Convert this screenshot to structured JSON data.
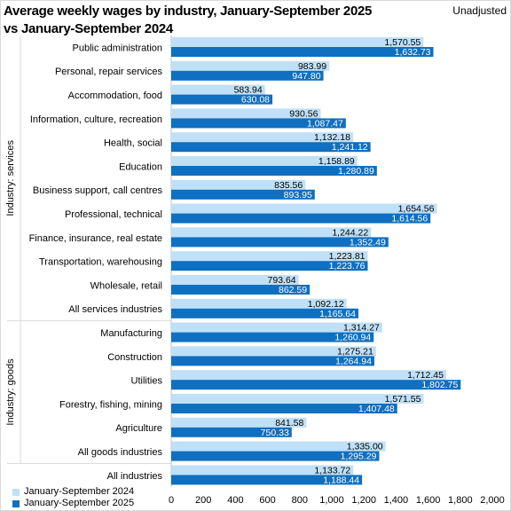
{
  "header": {
    "title_line1": "Average weekly wages by industry, January-September 2025",
    "title_line2": "vs January-September 2024",
    "adjustment": "Unadjusted"
  },
  "chart_data": {
    "type": "bar",
    "orientation": "horizontal",
    "title": "Average weekly wages by industry, January-September 2025 vs January-September 2024",
    "categories": [
      "Public administration",
      "Personal, repair services",
      "Accommodation, food",
      "Information, culture, recreation",
      "Health, social",
      "Education",
      "Business support, call centres",
      "Professional, technical",
      "Finance, insurance, real estate",
      "Transportation, warehousing",
      "Wholesale, retail",
      "All services industries",
      "Manufacturing",
      "Construction",
      "Utilities",
      "Forestry, fishing, mining",
      "Agriculture",
      "All goods industries",
      "All industries"
    ],
    "series": [
      {
        "name": "January-September 2024",
        "color": "#bfe0f7",
        "values": [
          1570.55,
          983.99,
          583.94,
          930.56,
          1132.18,
          1158.89,
          835.56,
          1654.56,
          1244.22,
          1223.81,
          793.64,
          1092.12,
          1314.27,
          1275.21,
          1712.45,
          1571.55,
          841.58,
          1335.0,
          1133.72
        ],
        "labels": [
          "1,570.55",
          "983.99",
          "583.94",
          "930.56",
          "1,132.18",
          "1,158.89",
          "835.56",
          "1,654.56",
          "1,244.22",
          "1,223.81",
          "793.64",
          "1,092.12",
          "1,314.27",
          "1,275.21",
          "1,712.45",
          "1,571.55",
          "841.58",
          "1,335.00",
          "1,133.72"
        ]
      },
      {
        "name": "January-September 2025",
        "color": "#0f6fc0",
        "values": [
          1632.73,
          947.8,
          630.08,
          1087.47,
          1241.12,
          1280.89,
          893.95,
          1614.56,
          1352.49,
          1223.76,
          862.59,
          1165.64,
          1260.94,
          1264.94,
          1802.75,
          1407.48,
          750.33,
          1295.29,
          1188.44
        ],
        "labels": [
          "1,632.73",
          "947.80",
          "630.08",
          "1,087.47",
          "1,241.12",
          "1,280.89",
          "893.95",
          "1,614.56",
          "1,352.49",
          "1,223.76",
          "862.59",
          "1,165.64",
          "1,260.94",
          "1,264.94",
          "1,802.75",
          "1,407.48",
          "750.33",
          "1,295.29",
          "1,188.44"
        ]
      }
    ],
    "groups": [
      {
        "label": "Industry: services",
        "first": 0,
        "last": 11
      },
      {
        "label": "Industry: goods",
        "first": 12,
        "last": 17
      }
    ],
    "xlim": [
      0,
      2000
    ],
    "xticks": [
      0,
      200,
      400,
      600,
      800,
      1000,
      1200,
      1400,
      1600,
      1800,
      2000
    ],
    "xtick_labels": [
      "0",
      "200",
      "400",
      "600",
      "800",
      "1,000",
      "1,200",
      "1,400",
      "1,600",
      "1,800",
      "2,000"
    ],
    "grid": false,
    "legend": "bottom-left"
  }
}
